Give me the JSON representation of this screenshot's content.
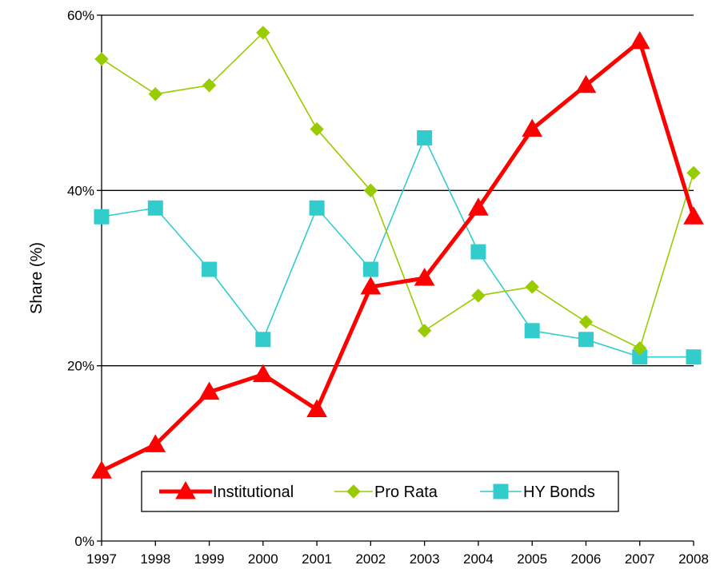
{
  "chart_data": {
    "type": "line",
    "title": "",
    "xlabel": "",
    "ylabel": "Share (%)",
    "ylim": [
      0,
      60
    ],
    "yticks": [
      0,
      20,
      40,
      60
    ],
    "ytick_labels": [
      "0%",
      "20%",
      "40%",
      "60%"
    ],
    "categories": [
      "1997",
      "1998",
      "1999",
      "2000",
      "2001",
      "2002",
      "2003",
      "2004",
      "2005",
      "2006",
      "2007",
      "2008"
    ],
    "grid": "horizontal at 20%, 40%, 60%",
    "legend_position": "bottom-center, inside plot",
    "series": [
      {
        "name": "Institutional",
        "values": [
          8,
          11,
          17,
          19,
          15,
          29,
          30,
          38,
          47,
          52,
          57,
          37
        ],
        "color": "#ff0000",
        "marker": "triangle"
      },
      {
        "name": "Pro Rata",
        "values": [
          55,
          51,
          52,
          58,
          47,
          40,
          24,
          28,
          29,
          25,
          22,
          42
        ],
        "color": "#99cc00",
        "marker": "diamond"
      },
      {
        "name": "HY Bonds",
        "values": [
          37,
          38,
          31,
          23,
          38,
          31,
          46,
          33,
          24,
          23,
          21,
          21
        ],
        "color": "#33cccc",
        "marker": "square"
      }
    ]
  }
}
